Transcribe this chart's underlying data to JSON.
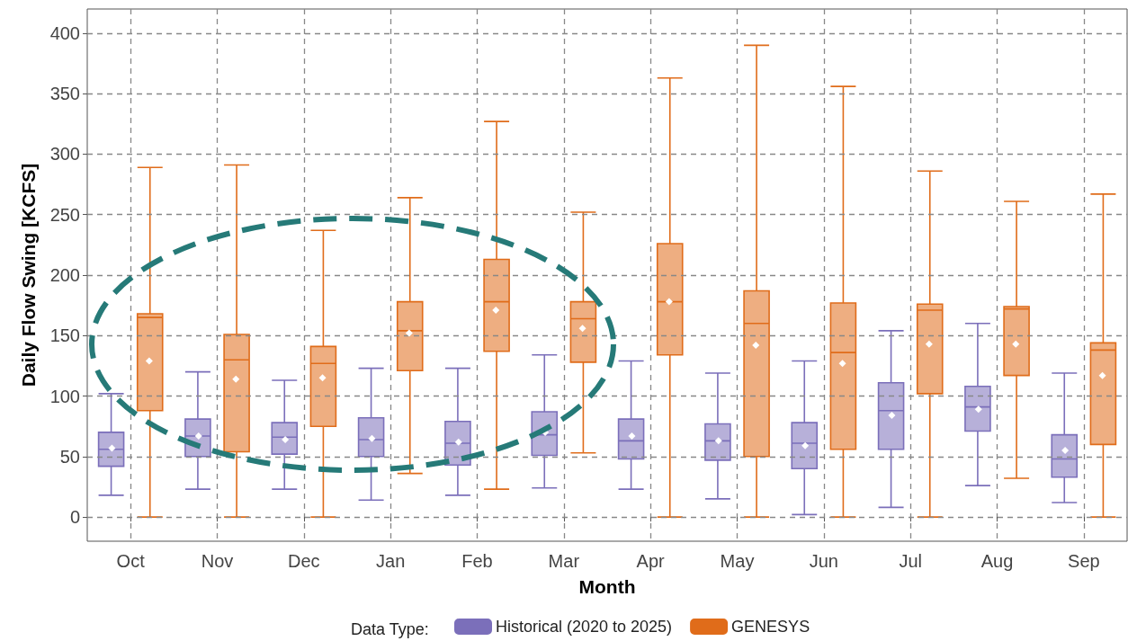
{
  "chart_data": {
    "type": "box",
    "xlabel": "Month",
    "ylabel": "Daily Flow Swing [KCFS]",
    "legend_title": "Data Type:",
    "categories": [
      "Oct",
      "Nov",
      "Dec",
      "Jan",
      "Feb",
      "Mar",
      "Apr",
      "May",
      "Jun",
      "Jul",
      "Aug",
      "Sep"
    ],
    "ylim": [
      -20,
      420
    ],
    "yticks": [
      0,
      50,
      100,
      150,
      200,
      250,
      300,
      350,
      400
    ],
    "grid": true,
    "legend": "bottom",
    "series": [
      {
        "name": "Historical (2020 to 2025)",
        "color": "#7b6fba",
        "boxes": [
          {
            "low": 18,
            "q1": 42,
            "median": 56,
            "q3": 70,
            "high": 102,
            "mean": 57
          },
          {
            "low": 23,
            "q1": 50,
            "median": 67,
            "q3": 81,
            "high": 120,
            "mean": 67
          },
          {
            "low": 23,
            "q1": 52,
            "median": 66,
            "q3": 78,
            "high": 113,
            "mean": 64
          },
          {
            "low": 14,
            "q1": 50,
            "median": 64,
            "q3": 82,
            "high": 123,
            "mean": 65
          },
          {
            "low": 18,
            "q1": 43,
            "median": 61,
            "q3": 79,
            "high": 123,
            "mean": 62
          },
          {
            "low": 24,
            "q1": 51,
            "median": 68,
            "q3": 87,
            "high": 134,
            "mean": 70
          },
          {
            "low": 23,
            "q1": 48,
            "median": 63,
            "q3": 81,
            "high": 129,
            "mean": 67
          },
          {
            "low": 15,
            "q1": 47,
            "median": 63,
            "q3": 77,
            "high": 119,
            "mean": 63
          },
          {
            "low": 2,
            "q1": 40,
            "median": 61,
            "q3": 78,
            "high": 129,
            "mean": 59
          },
          {
            "low": 8,
            "q1": 56,
            "median": 88,
            "q3": 111,
            "high": 154,
            "mean": 84
          },
          {
            "low": 26,
            "q1": 71,
            "median": 91,
            "q3": 108,
            "high": 160,
            "mean": 89
          },
          {
            "low": 12,
            "q1": 33,
            "median": 48,
            "q3": 68,
            "high": 119,
            "mean": 55
          }
        ]
      },
      {
        "name": "GENESYS",
        "color": "#e06c1a",
        "boxes": [
          {
            "low": 0,
            "q1": 88,
            "median": 165,
            "q3": 168,
            "high": 289,
            "mean": 129
          },
          {
            "low": 0,
            "q1": 54,
            "median": 130,
            "q3": 151,
            "high": 291,
            "mean": 114
          },
          {
            "low": 0,
            "q1": 75,
            "median": 127,
            "q3": 141,
            "high": 237,
            "mean": 115
          },
          {
            "low": 36,
            "q1": 121,
            "median": 154,
            "q3": 178,
            "high": 264,
            "mean": 152
          },
          {
            "low": 23,
            "q1": 137,
            "median": 178,
            "q3": 213,
            "high": 327,
            "mean": 171
          },
          {
            "low": 53,
            "q1": 128,
            "median": 164,
            "q3": 178,
            "high": 252,
            "mean": 156
          },
          {
            "low": 0,
            "q1": 134,
            "median": 178,
            "q3": 226,
            "high": 363,
            "mean": 178
          },
          {
            "low": 0,
            "q1": 50,
            "median": 160,
            "q3": 187,
            "high": 390,
            "mean": 142
          },
          {
            "low": 0,
            "q1": 56,
            "median": 136,
            "q3": 177,
            "high": 356,
            "mean": 127
          },
          {
            "low": 0,
            "q1": 102,
            "median": 171,
            "q3": 176,
            "high": 286,
            "mean": 143
          },
          {
            "low": 32,
            "q1": 117,
            "median": 172,
            "q3": 174,
            "high": 261,
            "mean": 143
          },
          {
            "low": 0,
            "q1": 60,
            "median": 138,
            "q3": 144,
            "high": 267,
            "mean": 117
          }
        ]
      }
    ]
  }
}
